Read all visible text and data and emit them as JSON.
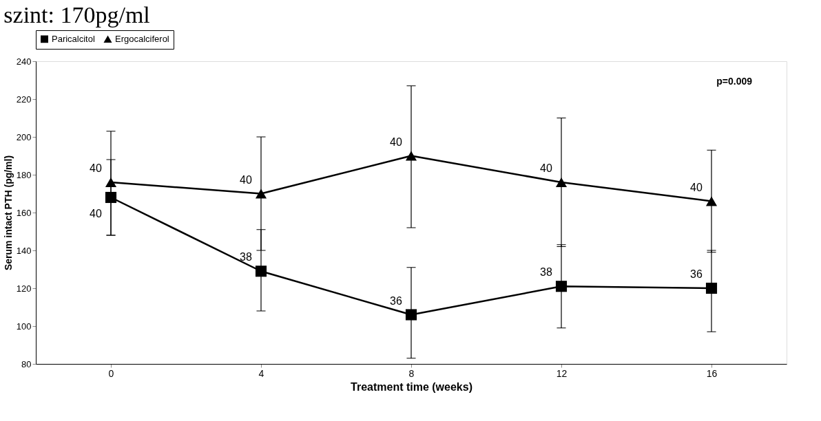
{
  "chart_data": {
    "type": "line",
    "title": "szint: 170pg/ml",
    "xlabel": "Treatment time (weeks)",
    "ylabel": "Serum intact PTH (pg/ml)",
    "categories": [
      "0",
      "4",
      "8",
      "12",
      "16"
    ],
    "series": [
      {
        "name": "Paricalcitol",
        "color": "#000000",
        "marker": "square",
        "values": [
          168,
          129,
          106,
          121,
          120
        ],
        "errors": [
          [
            148,
            188
          ],
          [
            108,
            151
          ],
          [
            83,
            131
          ],
          [
            99,
            143
          ],
          [
            97,
            140
          ]
        ]
      },
      {
        "name": "Ergocalciferol",
        "color": "#000000",
        "marker": "triangle",
        "values": [
          176,
          170,
          190,
          176,
          166
        ],
        "errors": [
          [
            148,
            203
          ],
          [
            140,
            200
          ],
          [
            152,
            227
          ],
          [
            142,
            210
          ],
          [
            139,
            193
          ]
        ]
      }
    ],
    "ylim": [
      80,
      240
    ],
    "yticks": [
      80,
      100,
      120,
      140,
      160,
      180,
      200,
      220,
      240
    ],
    "grid": false,
    "legend": "top",
    "line_style": "solid",
    "annotations": [
      {
        "text": "40",
        "x": "0",
        "y": 176
      },
      {
        "text": "40",
        "x": "0",
        "y": 168
      },
      {
        "text": "40",
        "x": "4",
        "y": 170
      },
      {
        "text": "38",
        "x": "4",
        "y": 129
      },
      {
        "text": "40",
        "x": "8",
        "y": 190
      },
      {
        "text": "36",
        "x": "8",
        "y": 106
      },
      {
        "text": "40",
        "x": "12",
        "y": 176
      },
      {
        "text": "38",
        "x": "12",
        "y": 121
      },
      {
        "text": "40",
        "x": "16",
        "y": 166
      },
      {
        "text": "36",
        "x": "16",
        "y": 120
      },
      "p=0.009"
    ]
  }
}
